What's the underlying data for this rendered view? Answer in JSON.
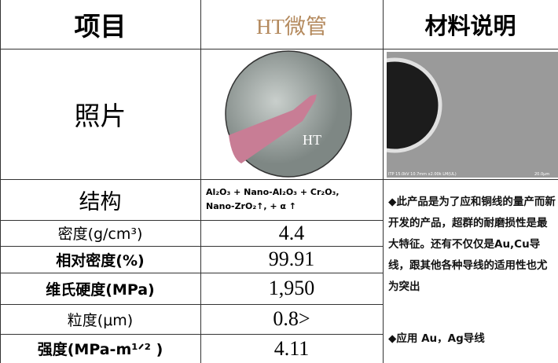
{
  "header": {
    "item": "项目",
    "product": "HT微管",
    "description": "材料说明"
  },
  "photo": {
    "label": "照片",
    "tube_label": "HT",
    "sem_caption": "ITP 15.0kV 10.7mm x2.00k LM(UL)",
    "sem_scale": "20.0μm"
  },
  "structure": {
    "label": "结构",
    "lines": [
      "Al₂O₃ + Nano-Al₂O₃  + Cr₂O₃,",
      "Nano-ZrO₂↑, + α ↑"
    ]
  },
  "table": {
    "rows": [
      [
        "密度(g/cm³)",
        "4.4"
      ],
      [
        "相对密度(%)",
        "99.91"
      ],
      [
        "维氏硬度(MPa)",
        "1,950"
      ],
      [
        "粒度(μm)",
        "0.8>"
      ],
      [
        "强度(MPa-m¹ᐟ² )",
        "4.11"
      ]
    ]
  },
  "notes": [
    "◆此产品是为了应和铜线的量产而新开发的产品，超群的耐磨损性是最大特征。还有不仅仅是Au,Cu导线，跟其他各种导线的适用性也尤为突出",
    "◆应用 Au，Ag导线"
  ]
}
